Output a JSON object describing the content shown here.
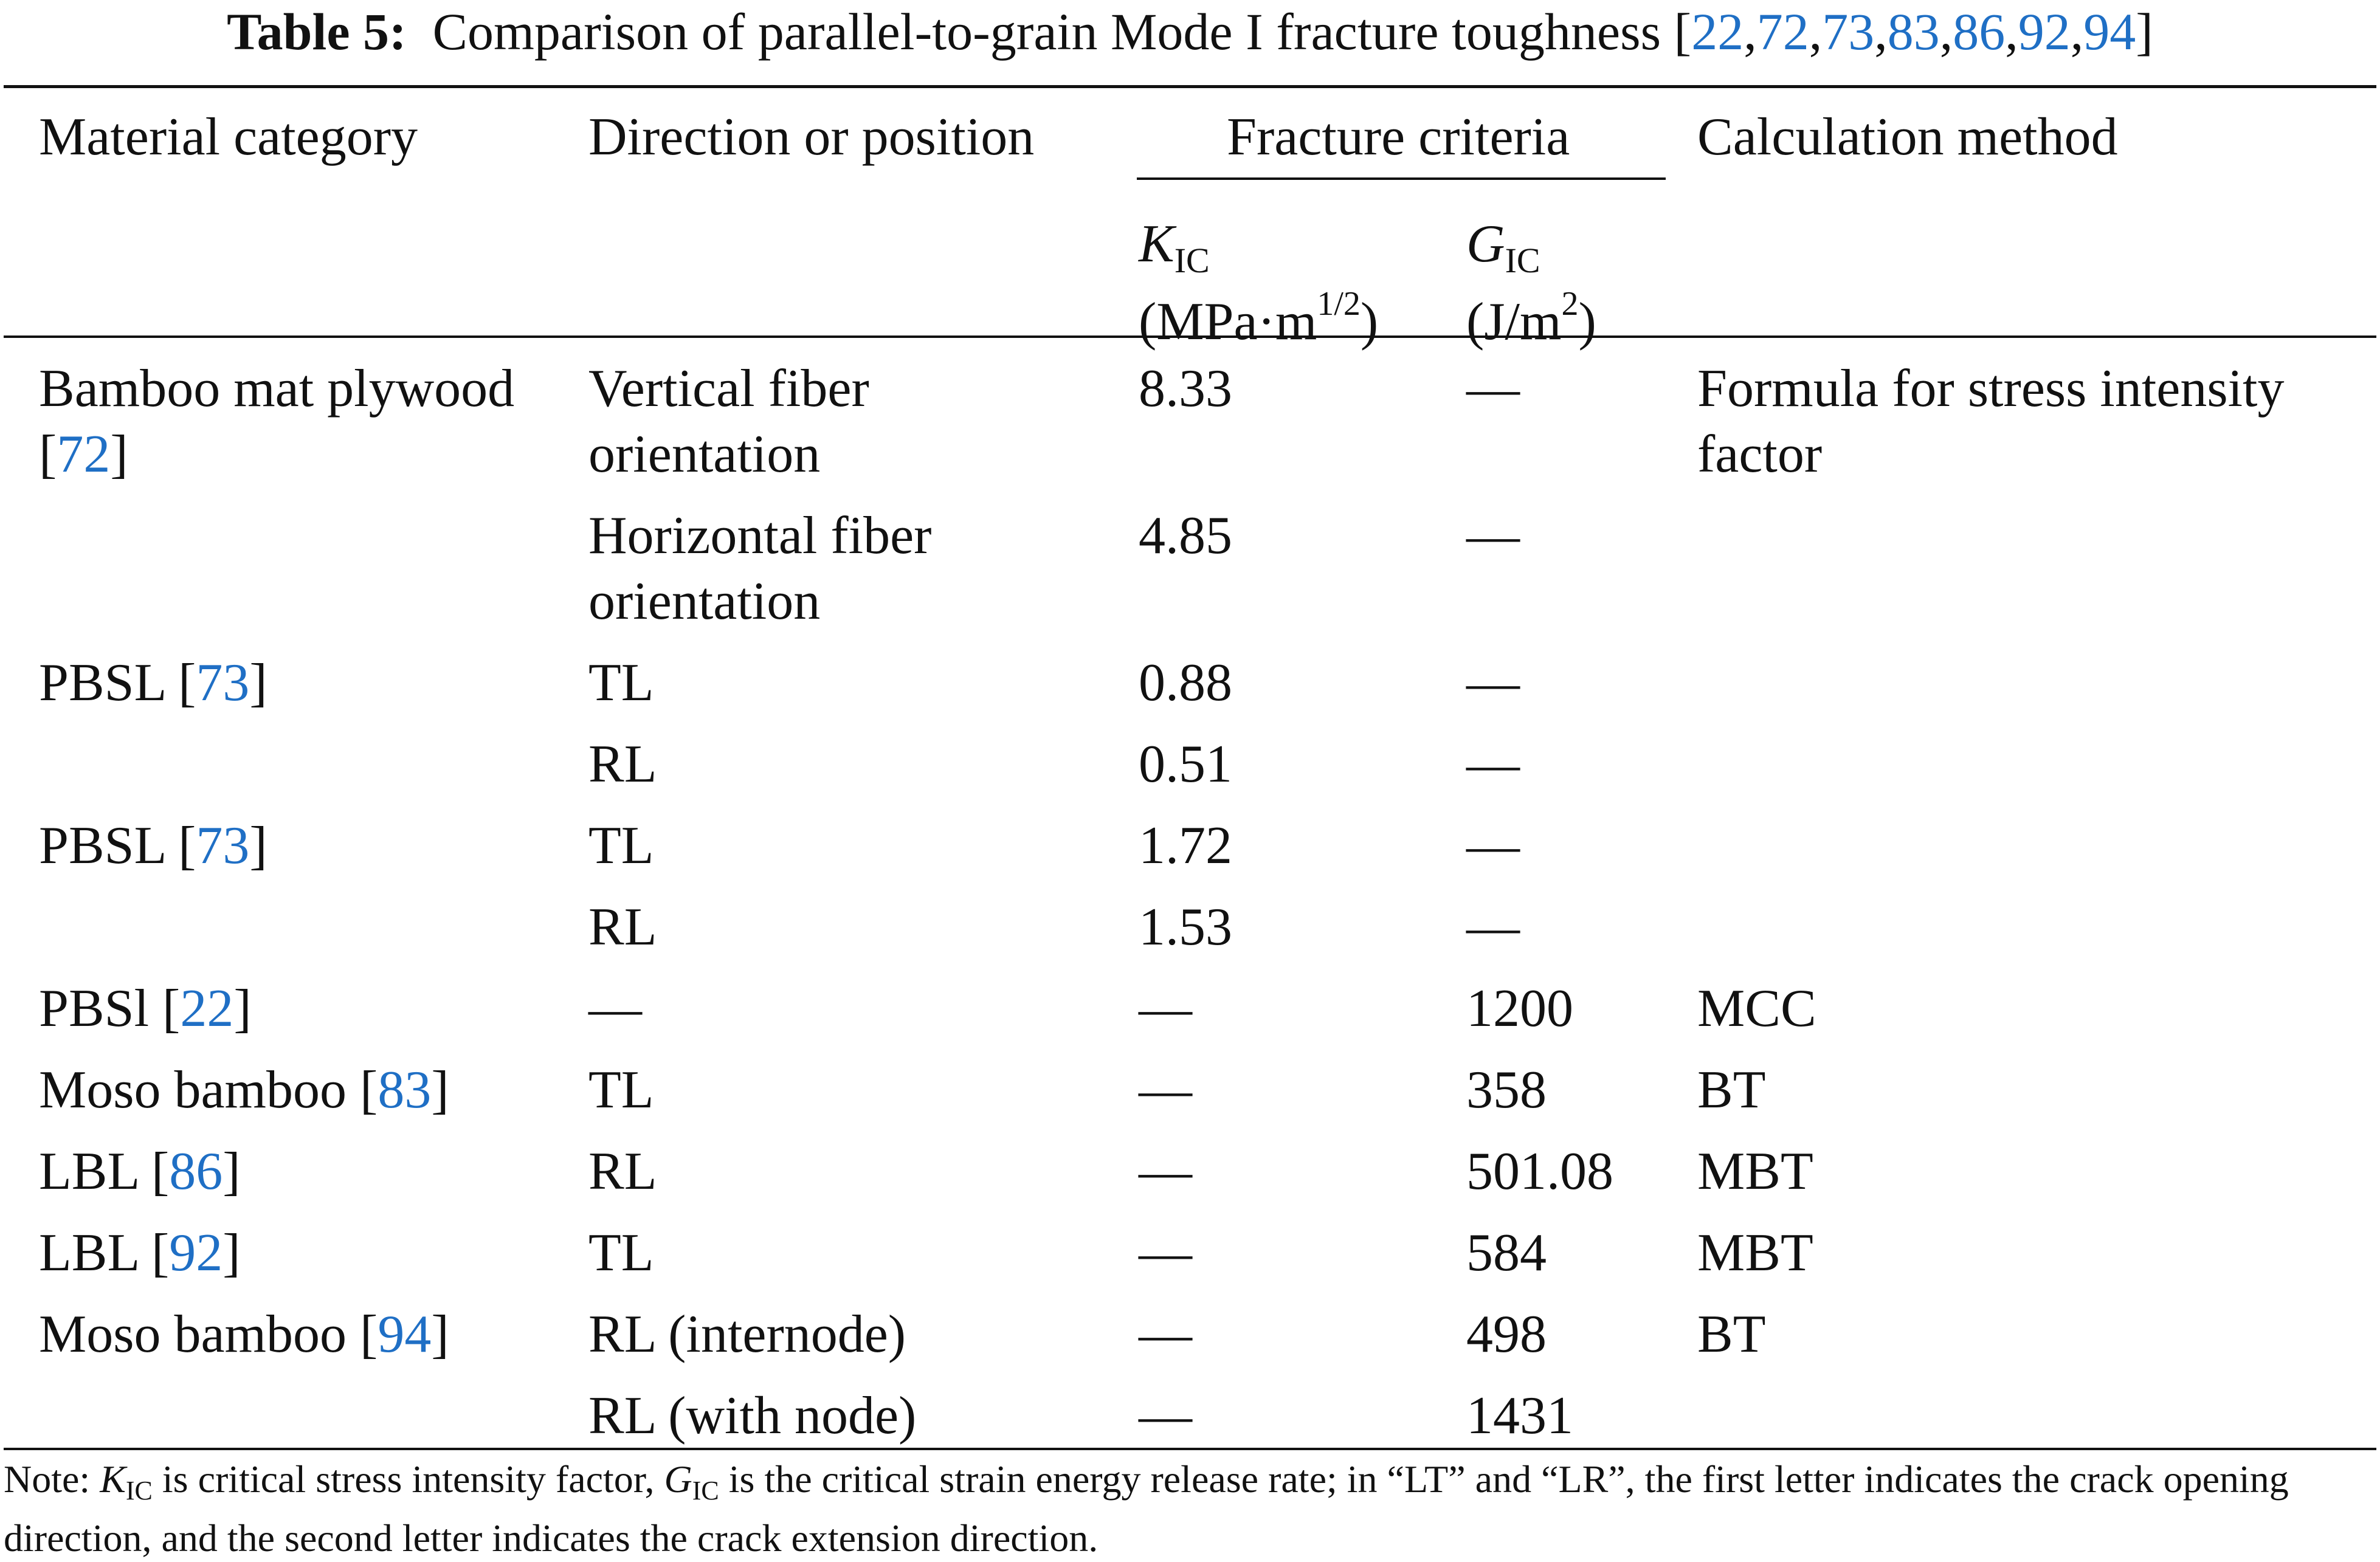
{
  "caption": {
    "label": "Table 5:",
    "text": "Comparison of parallel-to-grain Mode I fracture toughness [",
    "refs": [
      "22",
      "72",
      "73",
      "83",
      "86",
      "92",
      "94"
    ],
    "close": "]"
  },
  "headers": {
    "material": "Material category",
    "direction": "Direction or position",
    "criteria": "Fracture criteria",
    "method": "Calculation method",
    "kic_symbol": "K",
    "kic_sub": "IC",
    "kic_unit_a": "(MPa·m",
    "kic_unit_sup": "1/2",
    "kic_unit_b": ")",
    "gic_symbol": "G",
    "gic_sub": "IC",
    "gic_unit_a": "(J/m",
    "gic_unit_sup": "2",
    "gic_unit_b": ")"
  },
  "rows": [
    {
      "material": "Bamboo mat plywood",
      "ref": "72",
      "direction": "Vertical fiber",
      "direction2": "orientation",
      "kic": "8.33",
      "gic": "—",
      "method": "Formula for stress intensity",
      "method2": "factor"
    },
    {
      "material": "",
      "ref": "",
      "direction": "Horizontal fiber",
      "direction2": "orientation",
      "kic": "4.85",
      "gic": "—",
      "method": "",
      "method2": ""
    },
    {
      "material": "PBSL",
      "ref": "73",
      "direction": "TL",
      "kic": "0.88",
      "gic": "—",
      "method": ""
    },
    {
      "material": "",
      "ref": "",
      "direction": "RL",
      "kic": "0.51",
      "gic": "—",
      "method": ""
    },
    {
      "material": "PBSL",
      "ref": "73",
      "direction": "TL",
      "kic": "1.72",
      "gic": "—",
      "method": ""
    },
    {
      "material": "",
      "ref": "",
      "direction": "RL",
      "kic": "1.53",
      "gic": "—",
      "method": ""
    },
    {
      "material": "PBSl",
      "ref": "22",
      "direction": "—",
      "kic": "—",
      "gic": "1200",
      "method": "MCC"
    },
    {
      "material": "Moso bamboo",
      "ref": "83",
      "direction": "TL",
      "kic": "—",
      "gic": "358",
      "method": "BT"
    },
    {
      "material": "LBL",
      "ref": "86",
      "direction": "RL",
      "kic": "—",
      "gic": "501.08",
      "method": "MBT"
    },
    {
      "material": "LBL",
      "ref": "92",
      "direction": "TL",
      "kic": "—",
      "gic": "584",
      "method": "MBT"
    },
    {
      "material": "Moso bamboo",
      "ref": "94",
      "direction": "RL (internode)",
      "kic": "—",
      "gic": "498",
      "method": "BT"
    },
    {
      "material": "",
      "ref": "",
      "direction": "RL (with node)",
      "kic": "—",
      "gic": "1431",
      "method": ""
    }
  ],
  "note": {
    "prefix": "Note: ",
    "k": "K",
    "k_sub": "IC",
    "mid1": " is critical stress intensity factor, ",
    "g": "G",
    "g_sub": "IC",
    "line1_rest": " is the critical strain energy release rate; in “LT” and “LR”, the first letter indicates the crack opening",
    "line2": "direction, and the second letter indicates the crack extension direction."
  }
}
